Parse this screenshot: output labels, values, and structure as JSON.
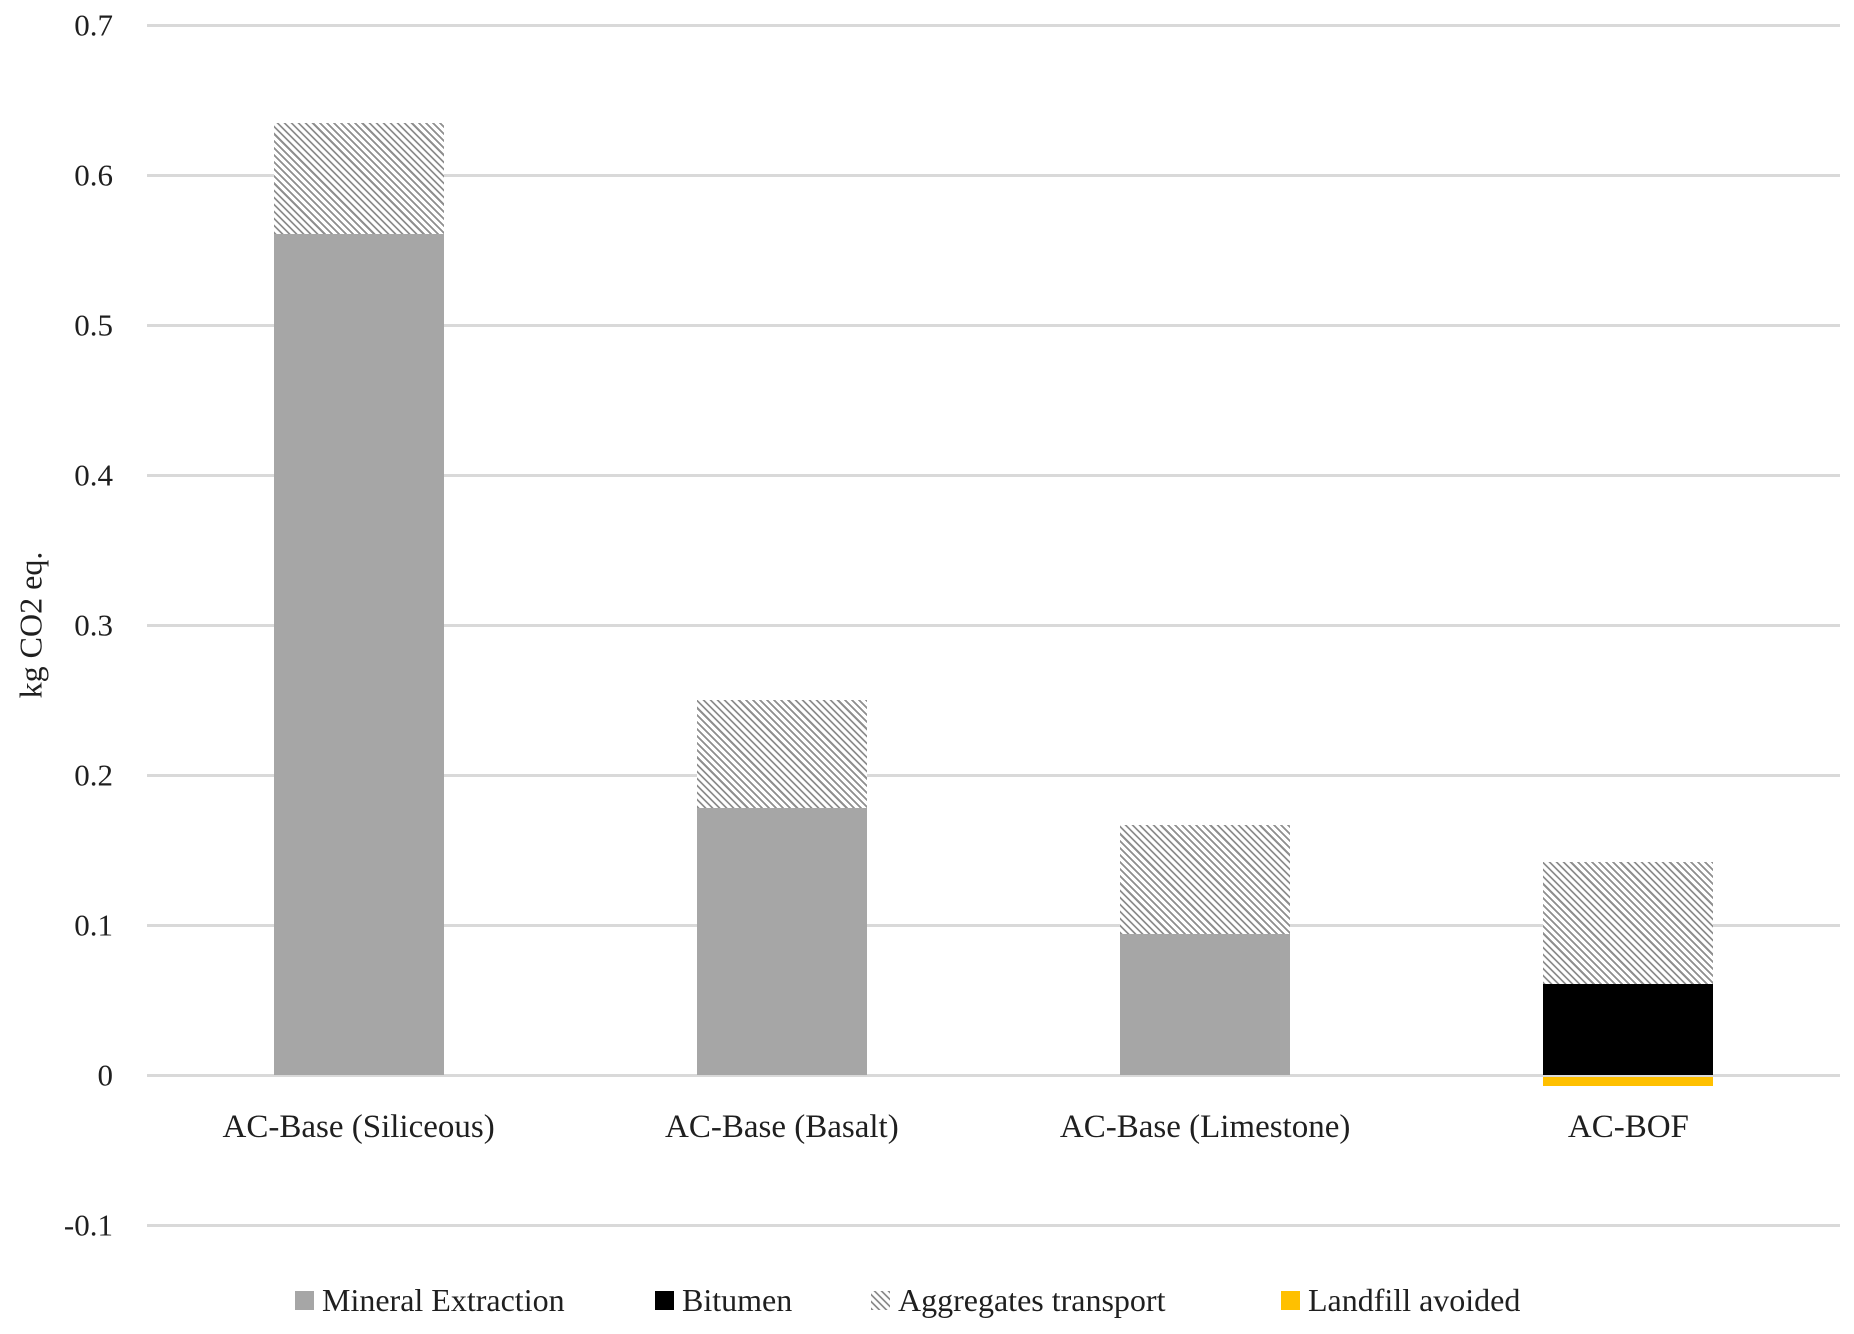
{
  "page": {
    "background": "#ffffff"
  },
  "chart_data": {
    "type": "bar",
    "stacked": true,
    "orientation": "vertical",
    "title": "",
    "xlabel": "",
    "ylabel": "kg CO2 eq.",
    "ylim": [
      -0.1,
      0.7
    ],
    "grid": true,
    "gridline_color": "#d9d9d9",
    "text_color": "#1f1f1f",
    "legend_position": "bottom",
    "yticks": [
      {
        "value": 0.7,
        "label": "0.7"
      },
      {
        "value": 0.6,
        "label": "0.6"
      },
      {
        "value": 0.5,
        "label": "0.5"
      },
      {
        "value": 0.4,
        "label": "0.4"
      },
      {
        "value": 0.3,
        "label": "0.3"
      },
      {
        "value": 0.2,
        "label": "0.2"
      },
      {
        "value": 0.1,
        "label": "0.1"
      },
      {
        "value": 0,
        "label": "0"
      },
      {
        "value": -0.1,
        "label": "-0.1"
      }
    ],
    "categories": [
      "AC-Base (Siliceous)",
      "AC-Base (Basalt)",
      "AC-Base (Limestone)",
      "AC-BOF"
    ],
    "series": [
      {
        "name": "Mineral Extraction",
        "fill": "solid",
        "color": "#a6a6a6",
        "values": [
          0.561,
          0.178,
          0.094,
          0
        ]
      },
      {
        "name": "Bitumen",
        "fill": "solid",
        "color": "#000000",
        "values": [
          0,
          0,
          0,
          0.061
        ]
      },
      {
        "name": "Aggregates transport",
        "fill": "hatch",
        "color": "#8f8f8f",
        "values": [
          0.074,
          0.072,
          0.073,
          0.081
        ]
      },
      {
        "name": "Landfill avoided",
        "fill": "solid",
        "color": "#ffc000",
        "values": [
          0,
          0,
          0,
          -0.006
        ]
      }
    ]
  }
}
